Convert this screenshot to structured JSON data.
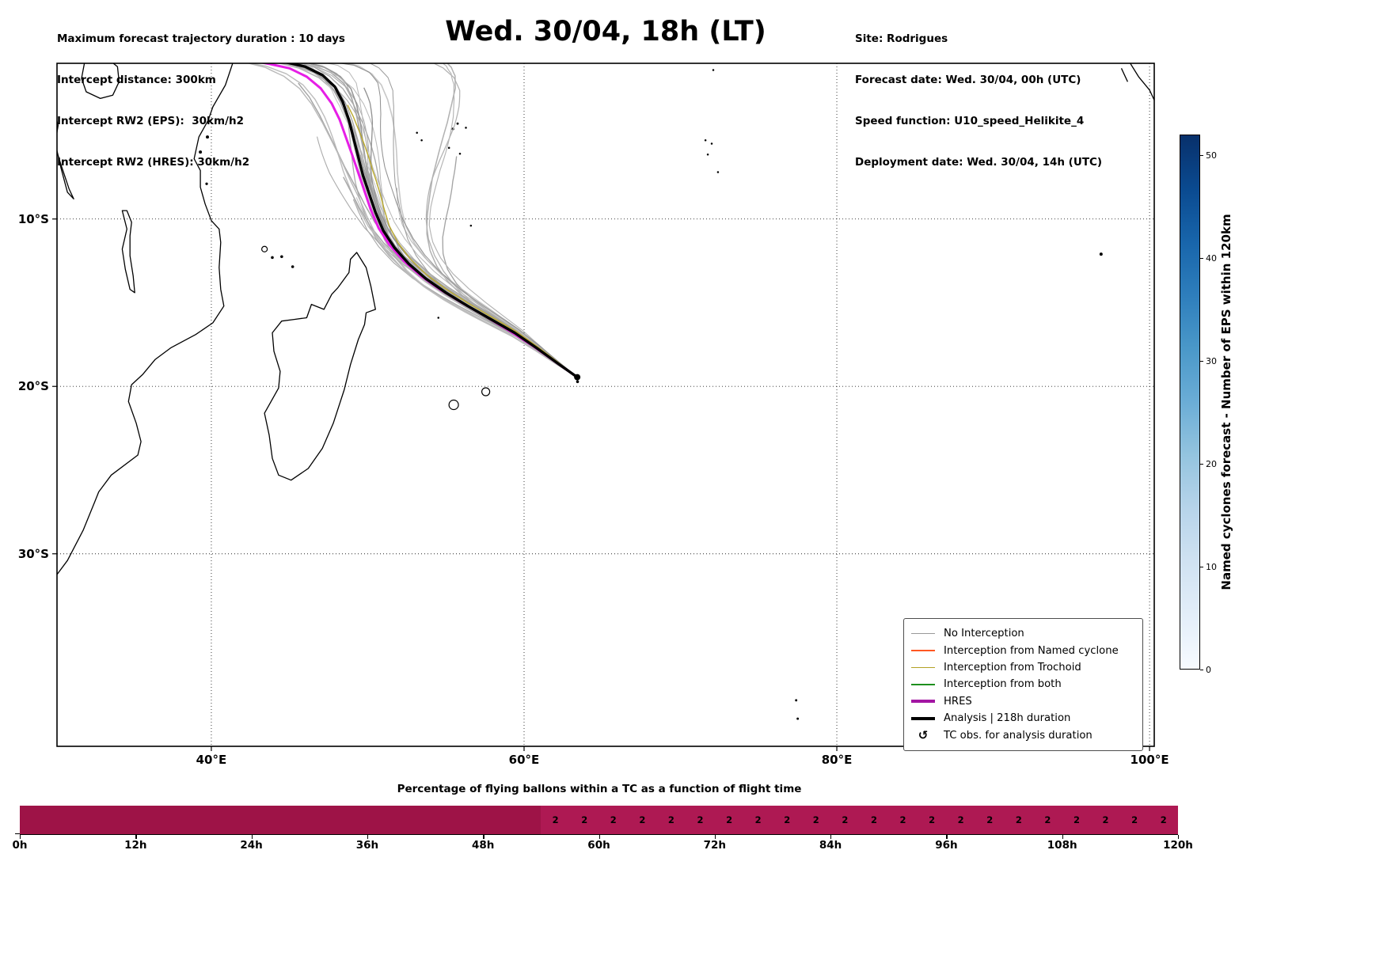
{
  "header": {
    "left_lines": [
      "Maximum forecast trajectory duration : 10 days",
      "Intercept distance: 300km",
      "Intercept RW2 (EPS):  30km/h2",
      "Intercept RW2 (HRES): 30km/h2"
    ],
    "title": "Wed. 30/04, 18h (LT)",
    "right_lines": [
      "Site: Rodrigues",
      "Forecast date: Wed. 30/04, 00h (UTC)",
      "Speed function: U10_speed_Helikite_4",
      "Deployment date: Wed. 30/04, 14h (UTC)"
    ]
  },
  "chart_data": [
    {
      "type": "line",
      "subtype": "tc-trajectory-map",
      "title": "Wed. 30/04, 18h (LT)",
      "projection": "PlateCarree",
      "lon_range": [
        30.13,
        100.3
      ],
      "lat_range": [
        -41.5,
        -0.7
      ],
      "x_tick_lons": [
        40,
        60,
        80,
        100
      ],
      "x_tick_labels": [
        "40°E",
        "60°E",
        "80°E",
        "100°E"
      ],
      "y_tick_lats": [
        -10,
        -20,
        -30
      ],
      "y_tick_labels": [
        "10°S",
        "20°S",
        "30°S"
      ],
      "grid": "dotted",
      "start_point": {
        "site": "Rodrigues",
        "lon": 63.4,
        "lat": -19.45
      },
      "tracks": {
        "analysis": {
          "name": "Analysis | 218h duration",
          "color": "#000000",
          "lw": 3.4,
          "points": [
            [
              63.4,
              -19.45
            ],
            [
              62.2,
              -18.65
            ],
            [
              60.8,
              -17.7
            ],
            [
              59.4,
              -16.8
            ],
            [
              57.9,
              -16.0
            ],
            [
              56.4,
              -15.2
            ],
            [
              55.0,
              -14.4
            ],
            [
              53.7,
              -13.55
            ],
            [
              52.6,
              -12.65
            ],
            [
              51.7,
              -11.7
            ],
            [
              51.0,
              -10.7
            ],
            [
              50.5,
              -9.6
            ],
            [
              50.1,
              -8.5
            ],
            [
              49.7,
              -7.4
            ],
            [
              49.4,
              -6.3
            ],
            [
              49.1,
              -5.2
            ],
            [
              48.8,
              -4.1
            ],
            [
              48.4,
              -3.0
            ],
            [
              47.9,
              -2.1
            ],
            [
              47.1,
              -1.4
            ],
            [
              46.0,
              -0.9
            ],
            [
              44.8,
              -0.65
            ]
          ]
        },
        "hres": {
          "name": "HRES",
          "color": "#E61EE6",
          "lw": 3.0,
          "points": [
            [
              63.4,
              -19.45
            ],
            [
              62.1,
              -18.6
            ],
            [
              60.6,
              -17.6
            ],
            [
              59.1,
              -16.7
            ],
            [
              57.6,
              -15.85
            ],
            [
              56.1,
              -15.05
            ],
            [
              54.7,
              -14.25
            ],
            [
              53.4,
              -13.4
            ],
            [
              52.3,
              -12.5
            ],
            [
              51.4,
              -11.55
            ],
            [
              50.7,
              -10.55
            ],
            [
              50.2,
              -9.45
            ],
            [
              49.8,
              -8.35
            ],
            [
              49.4,
              -7.25
            ],
            [
              49.0,
              -6.15
            ],
            [
              48.6,
              -5.1
            ],
            [
              48.2,
              -4.05
            ],
            [
              47.7,
              -3.1
            ],
            [
              47.0,
              -2.2
            ],
            [
              46.1,
              -1.5
            ],
            [
              45.0,
              -1.0
            ],
            [
              43.8,
              -0.75
            ],
            [
              43.2,
              -0.65
            ]
          ]
        },
        "trochoid_member": {
          "name": "Interception from Trochoid",
          "color": "#BCAB2E",
          "lw": 1.4,
          "A": 0.6,
          "power": 1.3,
          "wiggle": 0.55,
          "freq": 1.6,
          "phase": 2.1,
          "lat_amp": 0.3,
          "end_frac": 0.8
        },
        "ensemble": {
          "name": "No Interception",
          "count": 34,
          "seed": 11,
          "spread_deg": [
            -3.5,
            5.5
          ],
          "outliers": 4,
          "outlier_extra": [
            2.5,
            6.0
          ],
          "tight_count": 10,
          "power": [
            1.15,
            1.9
          ],
          "wiggle": [
            0.15,
            0.8
          ],
          "wiggle_freq": [
            0.8,
            2.4
          ],
          "lat_amp": 1.2,
          "short_fraction": 0.3,
          "gray_range": [
            140,
            205
          ],
          "lw_range": [
            1.0,
            1.6
          ]
        }
      },
      "legend": {
        "items": [
          {
            "label": "No Interception",
            "swatch": "line",
            "color": "#999999",
            "lw": 1.5
          },
          {
            "label": "Interception from Named cyclone",
            "swatch": "line",
            "color": "#FF5722",
            "lw": 1.5
          },
          {
            "label": "Interception from Trochoid",
            "swatch": "line",
            "color": "#B3A125",
            "lw": 1.5
          },
          {
            "label": "Interception from both",
            "swatch": "line",
            "color": "#1E8F1E",
            "lw": 1.5
          },
          {
            "label": "HRES",
            "swatch": "line",
            "color": "#A315A3",
            "lw": 4
          },
          {
            "label": "Analysis | 218h duration",
            "swatch": "line",
            "color": "#000000",
            "lw": 4
          },
          {
            "label": "TC obs. for analysis duration",
            "swatch": "glyph",
            "glyph": "↺",
            "color": "#000000"
          }
        ]
      },
      "colorbar": {
        "label": "Named cyclones forecast - Number of EPS within 120km",
        "vmin": 0,
        "vmax": 52,
        "ticks": [
          0,
          10,
          20,
          30,
          40,
          50
        ],
        "cmap_stops": [
          "#f7fbff",
          "#e3eef9",
          "#d0e2f2",
          "#b7d4ea",
          "#94c4df",
          "#6badd6",
          "#4a98c9",
          "#2e7ebc",
          "#1865ab",
          "#0a4a90",
          "#08306b"
        ]
      },
      "coastlines": [
        {
          "name": "africa-east-coast",
          "closed": false,
          "points": [
            [
              41.4,
              -0.6
            ],
            [
              40.9,
              -2.0
            ],
            [
              40.1,
              -3.3
            ],
            [
              39.8,
              -4.1
            ],
            [
              39.2,
              -5.1
            ],
            [
              38.9,
              -6.4
            ],
            [
              39.3,
              -7.1
            ],
            [
              39.3,
              -8.1
            ],
            [
              39.6,
              -9.1
            ],
            [
              40.0,
              -10.1
            ],
            [
              40.5,
              -10.6
            ],
            [
              40.6,
              -11.4
            ],
            [
              40.5,
              -12.9
            ],
            [
              40.6,
              -14.2
            ],
            [
              40.8,
              -15.2
            ],
            [
              40.1,
              -16.2
            ],
            [
              39.0,
              -16.9
            ],
            [
              37.4,
              -17.7
            ],
            [
              36.4,
              -18.4
            ],
            [
              35.6,
              -19.3
            ],
            [
              34.9,
              -19.9
            ],
            [
              34.7,
              -20.9
            ],
            [
              35.2,
              -22.2
            ],
            [
              35.5,
              -23.3
            ],
            [
              35.3,
              -24.1
            ],
            [
              33.6,
              -25.3
            ],
            [
              32.8,
              -26.3
            ],
            [
              32.5,
              -27.0
            ],
            [
              31.8,
              -28.6
            ],
            [
              30.8,
              -30.4
            ],
            [
              30.0,
              -31.4
            ]
          ]
        },
        {
          "name": "lake-victoria",
          "closed": true,
          "points": [
            [
              31.9,
              -0.6
            ],
            [
              31.7,
              -1.6
            ],
            [
              32.0,
              -2.4
            ],
            [
              32.9,
              -2.8
            ],
            [
              33.7,
              -2.6
            ],
            [
              34.1,
              -1.8
            ],
            [
              34.0,
              -0.9
            ],
            [
              33.6,
              -0.6
            ]
          ]
        },
        {
          "name": "lake-tanganyika",
          "closed": false,
          "points": [
            [
              29.9,
              -3.4
            ],
            [
              30.2,
              -4.4
            ],
            [
              30.0,
              -5.6
            ],
            [
              30.4,
              -6.8
            ],
            [
              30.9,
              -8.2
            ],
            [
              31.2,
              -8.8
            ],
            [
              30.8,
              -8.4
            ],
            [
              30.4,
              -7.0
            ],
            [
              30.1,
              -5.8
            ],
            [
              29.8,
              -4.4
            ]
          ]
        },
        {
          "name": "lake-malawi",
          "closed": true,
          "points": [
            [
              34.3,
              -9.5
            ],
            [
              34.6,
              -10.6
            ],
            [
              34.3,
              -11.8
            ],
            [
              34.5,
              -13.0
            ],
            [
              34.8,
              -14.2
            ],
            [
              35.1,
              -14.4
            ],
            [
              35.0,
              -13.4
            ],
            [
              34.8,
              -12.2
            ],
            [
              34.8,
              -11.0
            ],
            [
              34.9,
              -10.2
            ],
            [
              34.6,
              -9.5
            ]
          ]
        },
        {
          "name": "madagascar",
          "closed": true,
          "points": [
            [
              49.3,
              -12.0
            ],
            [
              49.9,
              -12.9
            ],
            [
              50.2,
              -14.0
            ],
            [
              50.5,
              -15.4
            ],
            [
              49.9,
              -15.6
            ],
            [
              49.8,
              -16.3
            ],
            [
              49.4,
              -17.2
            ],
            [
              48.9,
              -18.7
            ],
            [
              48.5,
              -20.2
            ],
            [
              47.8,
              -22.2
            ],
            [
              47.1,
              -23.7
            ],
            [
              46.2,
              -24.9
            ],
            [
              45.1,
              -25.6
            ],
            [
              44.3,
              -25.3
            ],
            [
              43.9,
              -24.3
            ],
            [
              43.7,
              -22.9
            ],
            [
              43.4,
              -21.6
            ],
            [
              44.3,
              -20.1
            ],
            [
              44.4,
              -19.1
            ],
            [
              44.0,
              -17.9
            ],
            [
              43.9,
              -16.8
            ],
            [
              44.5,
              -16.1
            ],
            [
              45.3,
              -16.0
            ],
            [
              46.1,
              -15.9
            ],
            [
              46.4,
              -15.1
            ],
            [
              47.2,
              -15.4
            ],
            [
              47.7,
              -14.5
            ],
            [
              48.1,
              -14.1
            ],
            [
              48.8,
              -13.2
            ],
            [
              48.9,
              -12.4
            ]
          ]
        },
        {
          "name": "sumatra-coast",
          "closed": false,
          "points": [
            [
              98.7,
              -0.6
            ],
            [
              99.3,
              -1.5
            ],
            [
              100.0,
              -2.3
            ],
            [
              100.3,
              -2.9
            ]
          ]
        },
        {
          "name": "mentawai-islands",
          "closed": false,
          "points": [
            [
              98.2,
              -1.0
            ],
            [
              98.6,
              -1.8
            ]
          ]
        }
      ],
      "islands": [
        [
          39.3,
          -6.0,
          2.2
        ],
        [
          39.75,
          -5.1,
          2.2
        ],
        [
          39.7,
          -7.9,
          1.8
        ],
        [
          43.4,
          -11.8,
          3.5
        ],
        [
          43.9,
          -12.3,
          2.0
        ],
        [
          44.5,
          -12.25,
          2.0
        ],
        [
          45.2,
          -12.85,
          2.0
        ],
        [
          55.45,
          -4.62,
          1.8
        ],
        [
          55.75,
          -4.3,
          1.6
        ],
        [
          56.28,
          -4.55,
          1.4
        ],
        [
          55.2,
          -5.75,
          1.4
        ],
        [
          55.9,
          -6.1,
          1.4
        ],
        [
          53.15,
          -4.85,
          1.4
        ],
        [
          53.45,
          -5.3,
          1.4
        ],
        [
          56.6,
          -10.4,
          1.4
        ],
        [
          54.52,
          -15.9,
          1.4
        ],
        [
          55.5,
          -21.1,
          6.0
        ],
        [
          57.55,
          -20.32,
          5.0
        ],
        [
          63.42,
          -19.72,
          2.0
        ],
        [
          71.6,
          -5.3,
          1.4
        ],
        [
          72.0,
          -5.5,
          1.4
        ],
        [
          71.75,
          -6.15,
          1.4
        ],
        [
          72.4,
          -7.2,
          1.4
        ],
        [
          72.1,
          -1.1,
          1.4
        ],
        [
          96.9,
          -12.1,
          2.2
        ],
        [
          77.4,
          -38.75,
          1.6
        ],
        [
          77.5,
          -39.85,
          1.6
        ]
      ]
    },
    {
      "type": "bar",
      "title": "Percentage of flying ballons within a TC as a function of flight time",
      "hours_range": [
        0,
        120
      ],
      "x_tick_hours": [
        0,
        12,
        24,
        36,
        48,
        60,
        72,
        84,
        96,
        108,
        120
      ],
      "x_tick_labels": [
        "0h",
        "12h",
        "24h",
        "36h",
        "48h",
        "60h",
        "72h",
        "84h",
        "96h",
        "108h",
        "120h"
      ],
      "segments": [
        {
          "from_h": 0,
          "to_h": 54,
          "percent": 100,
          "color": "#9E1347"
        },
        {
          "from_h": 54,
          "to_h": 120,
          "percent": 100,
          "color": "#AE1953"
        }
      ],
      "count_labels": {
        "text": "2",
        "color": "#000000",
        "hours": [
          55.5,
          58.5,
          61.5,
          64.5,
          67.5,
          70.5,
          73.5,
          76.5,
          79.5,
          82.5,
          85.5,
          88.5,
          91.5,
          94.5,
          97.5,
          100.5,
          103.5,
          106.5,
          109.5,
          112.5,
          115.5,
          118.5
        ]
      }
    }
  ]
}
